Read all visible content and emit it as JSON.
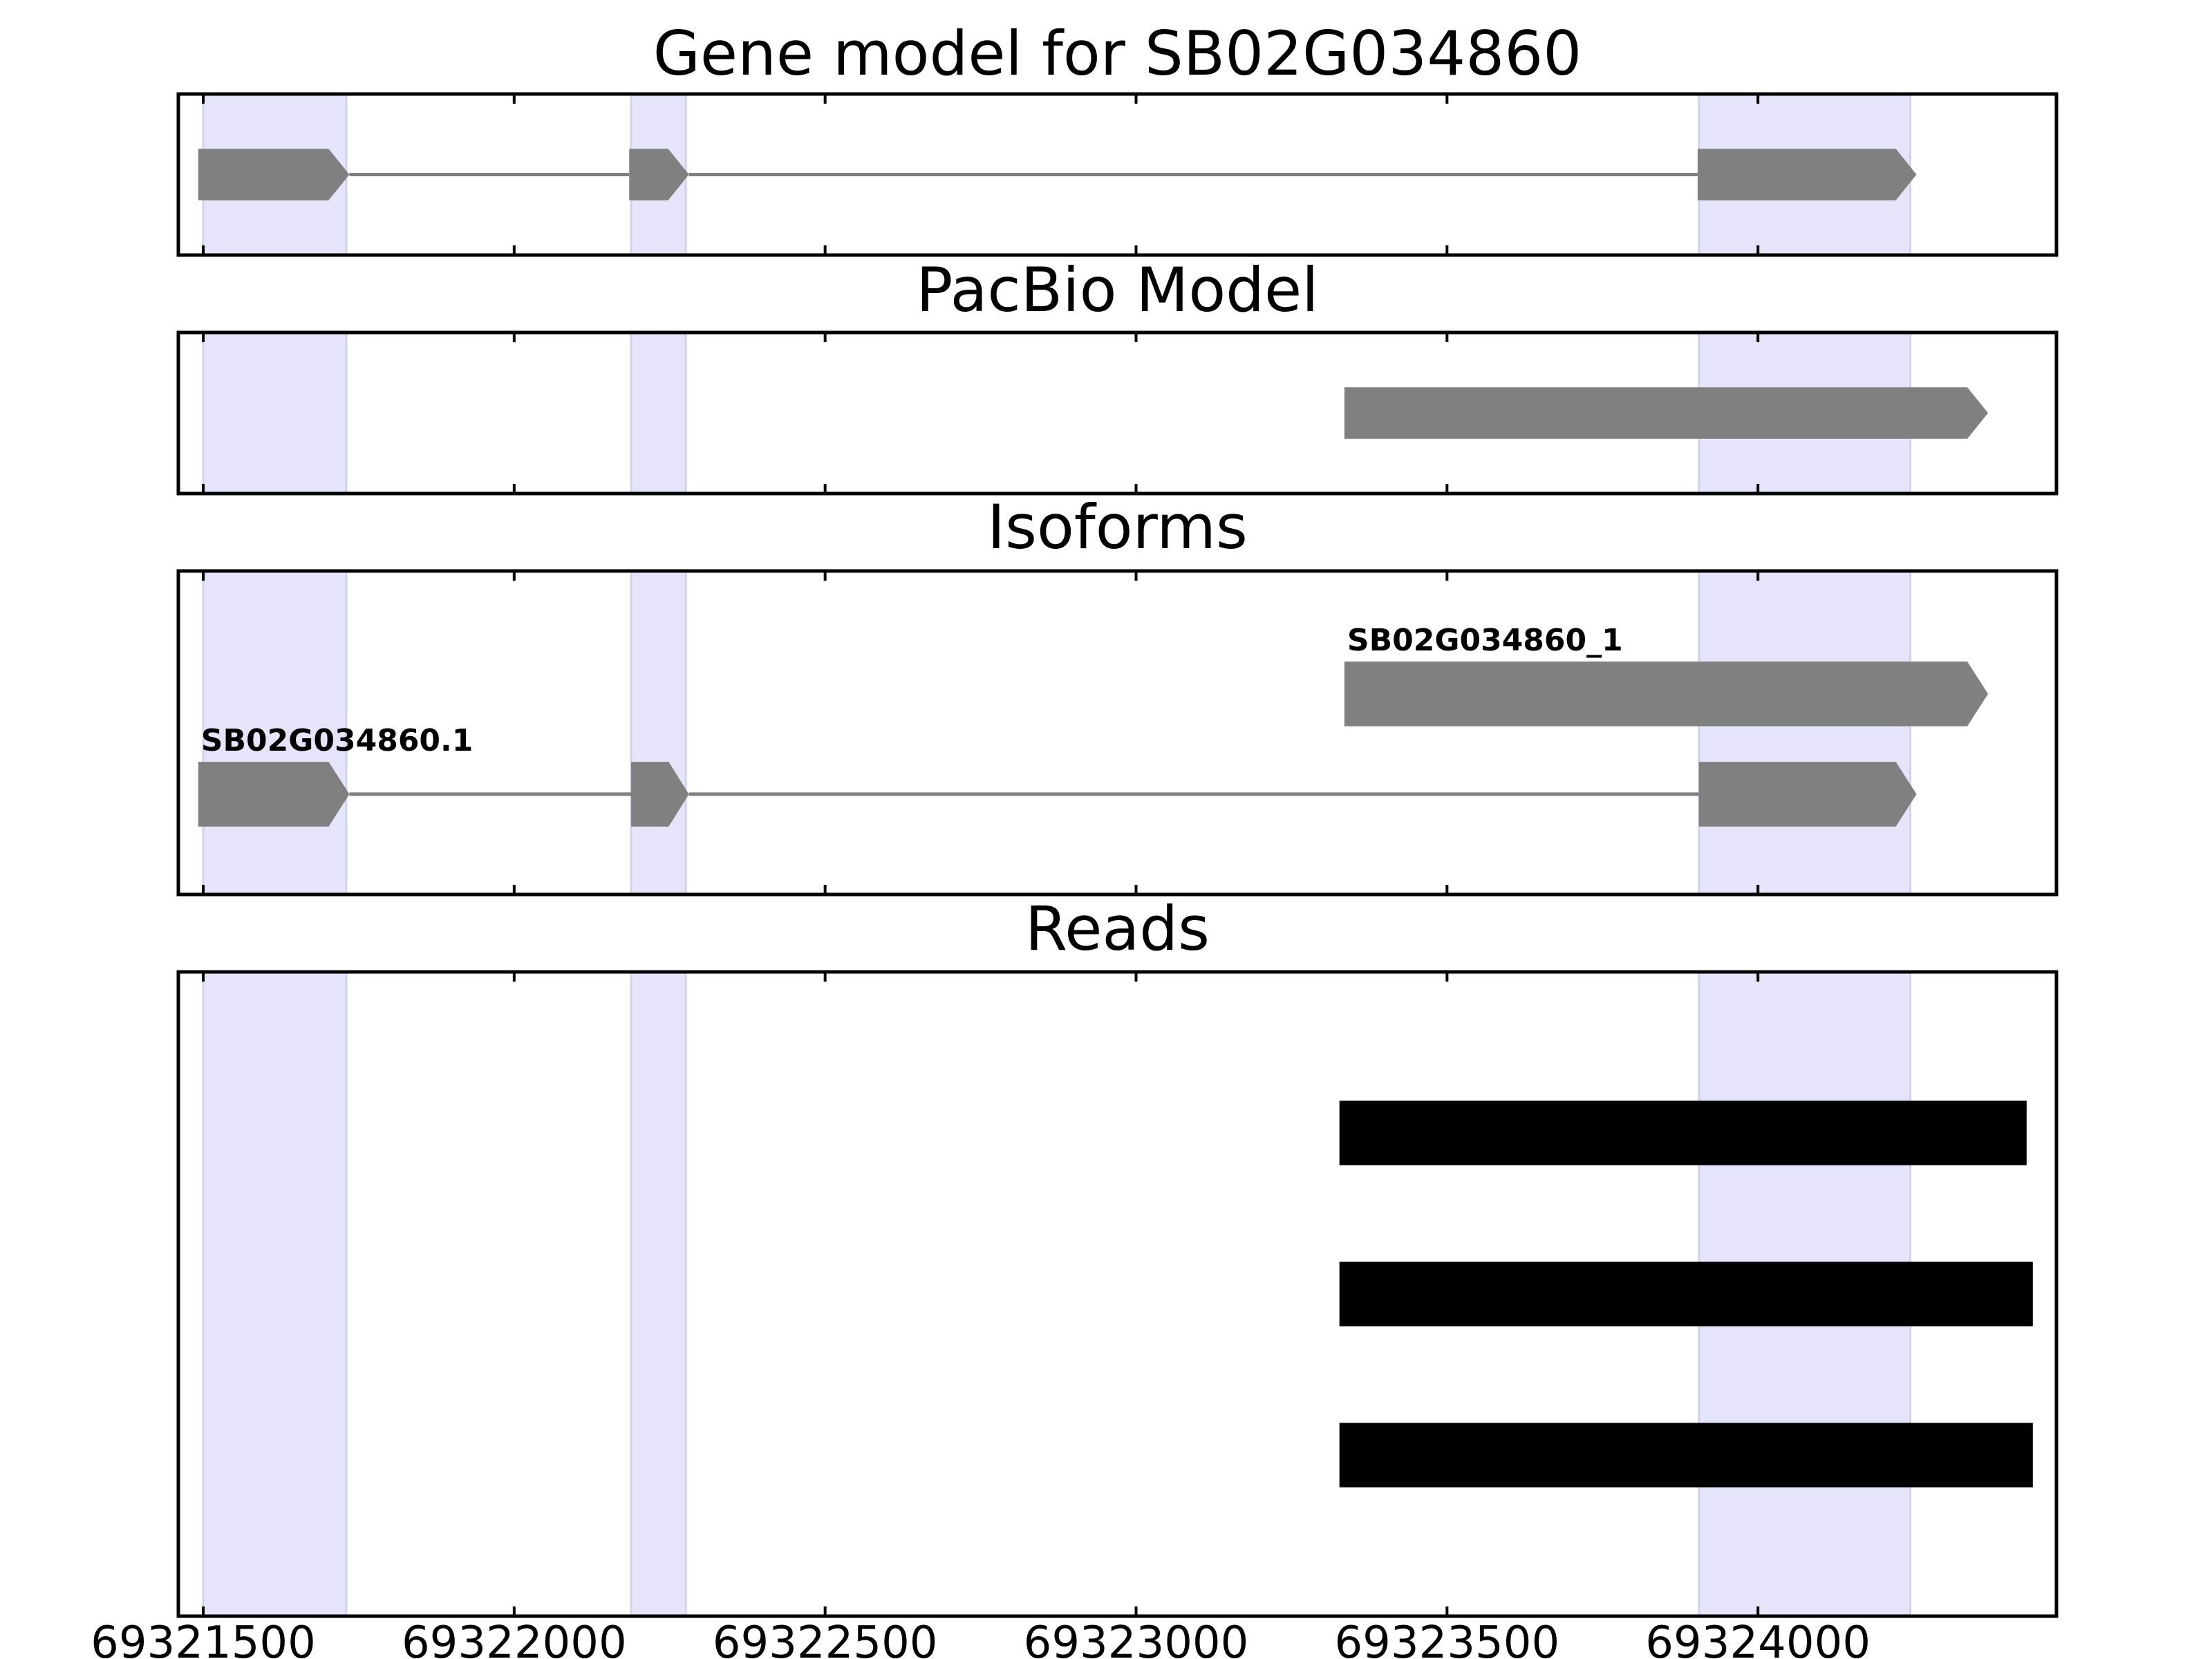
{
  "chart_data": {
    "type": "gene-track",
    "xlim": [
      69321460,
      69324480
    ],
    "x_ticks": [
      69321500,
      69322000,
      69322500,
      69323000,
      69323500,
      69324000
    ],
    "tick_labels": [
      "69321500",
      "69322000",
      "69322500",
      "69323000",
      "69323500",
      "69324000"
    ],
    "highlight_regions": [
      [
        69321500,
        69321730
      ],
      [
        69322188,
        69322276
      ],
      [
        69323905,
        69324245
      ]
    ],
    "colors": {
      "feature": "#808080",
      "read": "#000000",
      "highlight": "#e4e4fb",
      "intron": "#808080"
    },
    "panels": [
      {
        "key": "gene",
        "title": "Gene model for SB02G034860",
        "features": [
          {
            "label": "",
            "exons": [
              [
                69321492,
                69321735
              ],
              [
                69322185,
                69322281
              ],
              [
                69323903,
                69324255
              ]
            ],
            "row": 0.5,
            "height": 0.32,
            "strand": "+"
          }
        ]
      },
      {
        "key": "pacbio",
        "title": "PacBio Model",
        "features": [
          {
            "label": "",
            "exons": [
              [
                69323335,
                69324370
              ]
            ],
            "row": 0.5,
            "height": 0.32,
            "strand": "+"
          }
        ]
      },
      {
        "key": "isoforms",
        "title": "Isoforms",
        "features": [
          {
            "label": "SB02G034860_1",
            "exons": [
              [
                69323335,
                69324370
              ]
            ],
            "row": 0.62,
            "height": 0.2,
            "strand": "+"
          },
          {
            "label": "SB02G034860.1",
            "exons": [
              [
                69321492,
                69321735
              ],
              [
                69322188,
                69322281
              ],
              [
                69323905,
                69324255
              ]
            ],
            "row": 0.31,
            "height": 0.2,
            "strand": "+"
          }
        ]
      },
      {
        "key": "reads",
        "title": "Reads",
        "features": [
          {
            "label": "",
            "exons": [
              [
                69323327,
                69324432
              ]
            ],
            "row": 0.75,
            "height": 0.1,
            "strand": "",
            "kind": "read"
          },
          {
            "label": "",
            "exons": [
              [
                69323327,
                69324442
              ]
            ],
            "row": 0.5,
            "height": 0.1,
            "strand": "",
            "kind": "read"
          },
          {
            "label": "",
            "exons": [
              [
                69323327,
                69324442
              ]
            ],
            "row": 0.25,
            "height": 0.1,
            "strand": "",
            "kind": "read"
          }
        ]
      }
    ]
  }
}
